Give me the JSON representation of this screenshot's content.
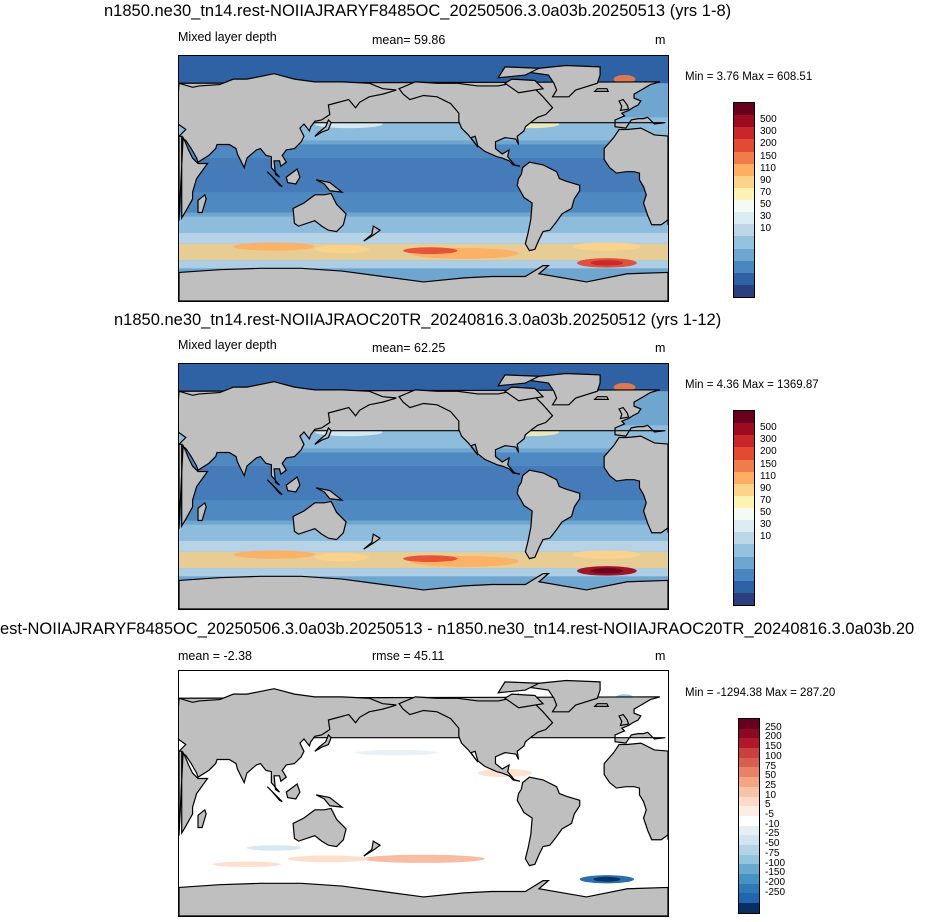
{
  "panels": [
    {
      "title": "n1850.ne30_tn14.rest-NOIIAJRARYF8485OC_20250506.3.0a03b.20250513 (yrs 1-8)",
      "left_label": "Mixed layer depth",
      "center_label": "mean=  59.86",
      "units": "m",
      "minmax": "Min =   3.76 Max = 608.51",
      "colorbar": {
        "ticks": [
          "500",
          "300",
          "200",
          "150",
          "110",
          "90",
          "70",
          "50",
          "30",
          "10"
        ],
        "colors": [
          "#67001f",
          "#9e0a1f",
          "#c8262a",
          "#e34a33",
          "#f07c4a",
          "#fdae61",
          "#fdd38a",
          "#fff2b3",
          "#f4faf4",
          "#dcecf4",
          "#bdd7e8",
          "#95c2de",
          "#6ea6cf",
          "#4a86bf",
          "#2f62a4",
          "#2b3f7f"
        ]
      },
      "map_style": "mld_a"
    },
    {
      "title": "n1850.ne30_tn14.rest-NOIIAJRAOC20TR_20240816.3.0a03b.20250512 (yrs 1-12)",
      "left_label": "Mixed layer depth",
      "center_label": "mean=  62.25",
      "units": "m",
      "minmax": "Min =   4.36 Max = 1369.87",
      "colorbar": {
        "ticks": [
          "500",
          "300",
          "200",
          "150",
          "110",
          "90",
          "70",
          "50",
          "30",
          "10"
        ],
        "colors": [
          "#67001f",
          "#9e0a1f",
          "#c8262a",
          "#e34a33",
          "#f07c4a",
          "#fdae61",
          "#fdd38a",
          "#fff2b3",
          "#f4faf4",
          "#dcecf4",
          "#bdd7e8",
          "#95c2de",
          "#6ea6cf",
          "#4a86bf",
          "#2f62a4",
          "#2b3f7f"
        ]
      },
      "map_style": "mld_b"
    },
    {
      "title": "est-NOIIAJRARYF8485OC_20250506.3.0a03b.20250513 - n1850.ne30_tn14.rest-NOIIAJRAOC20TR_20240816.3.0a03b.20",
      "left_label": "mean =  -2.38",
      "center_label": "rmse =  45.11",
      "units": "m",
      "minmax": "Min = -1294.38 Max = 287.20",
      "colorbar": {
        "ticks": [
          "250",
          "200",
          "150",
          "100",
          "75",
          "50",
          "25",
          "10",
          "5",
          "-5",
          "-10",
          "-25",
          "-50",
          "-75",
          "-100",
          "-150",
          "-200",
          "-250"
        ],
        "colors": [
          "#67001f",
          "#8c0a21",
          "#b2182b",
          "#c9413f",
          "#d6604d",
          "#e58268",
          "#f4a582",
          "#f8c4a8",
          "#fddbc7",
          "#fdeee3",
          "#ffffff",
          "#e6eff6",
          "#d1e5f0",
          "#b4d4e8",
          "#92c5de",
          "#6aa9cf",
          "#4393c3",
          "#2f79b5",
          "#2166ac",
          "#053061"
        ]
      },
      "map_style": "diff"
    }
  ],
  "chart_data": [
    {
      "type": "heatmap",
      "title": "n1850.ne30_tn14.rest-NOIIAJRARYF8485OC_20250506.3.0a03b.20250513 (yrs 1-8)",
      "subtitle": "Mixed layer depth",
      "units": "m",
      "mean": 59.86,
      "min": 3.76,
      "max": 608.51,
      "colorbar_levels": [
        10,
        30,
        50,
        70,
        90,
        110,
        150,
        200,
        300,
        500
      ]
    },
    {
      "type": "heatmap",
      "title": "n1850.ne30_tn14.rest-NOIIAJRAOC20TR_20240816.3.0a03b.20250512 (yrs 1-12)",
      "subtitle": "Mixed layer depth",
      "units": "m",
      "mean": 62.25,
      "min": 4.36,
      "max": 1369.87,
      "colorbar_levels": [
        10,
        30,
        50,
        70,
        90,
        110,
        150,
        200,
        300,
        500
      ]
    },
    {
      "type": "heatmap",
      "title": "est-NOIIAJRARYF8485OC_20250506.3.0a03b.20250513 - n1850.ne30_tn14.rest-NOIIAJRAOC20TR_20240816.3.0a03b.20",
      "units": "m",
      "mean": -2.38,
      "rmse": 45.11,
      "min": -1294.38,
      "max": 287.2,
      "colorbar_levels": [
        -250,
        -200,
        -150,
        -100,
        -75,
        -50,
        -25,
        -10,
        -5,
        5,
        10,
        25,
        50,
        75,
        100,
        150,
        200,
        250
      ]
    }
  ]
}
